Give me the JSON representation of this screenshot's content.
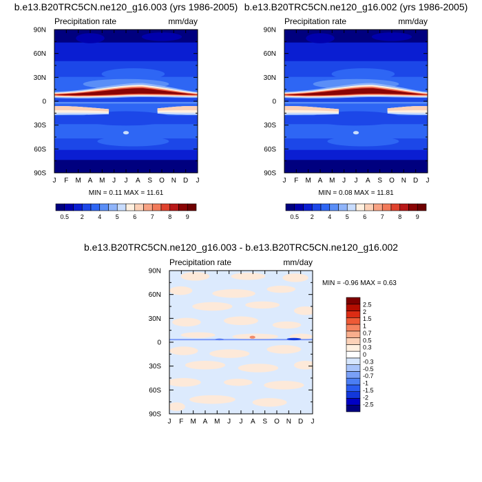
{
  "colors": {
    "abs_scale": [
      "#00007f",
      "#0000ad",
      "#0a1ed2",
      "#1c47e8",
      "#2e66f4",
      "#5a8ef7",
      "#8fb4fa",
      "#c8dcfd",
      "#fff0e0",
      "#fcd0b6",
      "#f8a283",
      "#f27a5a",
      "#e0422d",
      "#b81818",
      "#8a0404",
      "#6e0000"
    ],
    "diff_scale": [
      "#00007f",
      "#0000c4",
      "#1238dc",
      "#2a5cf0",
      "#4b7ef4",
      "#7aa0f7",
      "#a9c4fa",
      "#d6e6fd",
      "#ffffff",
      "#fff0e0",
      "#fcd2b8",
      "#f9ae8d",
      "#f5835f",
      "#ee5a36",
      "#dc2c14",
      "#b30d00",
      "#7e0000"
    ],
    "diff_bg": "#dceafd",
    "diff_warm": "#fde9d9",
    "diff_blue": "#5b7ff5",
    "diff_red": "#f08a6a"
  },
  "panel_left": {
    "title": "b.e13.B20TRC5CN.ne120_g16.003 (yrs 1986-2005)",
    "left_label": "Precipitation rate",
    "right_label": "mm/day",
    "minmax": "MIN =   0.11 MAX =  11.61"
  },
  "panel_right": {
    "title": "b.e13.B20TRC5CN.ne120_g16.002 (yrs 1986-2005)",
    "left_label": "Precipitation rate",
    "right_label": "mm/day",
    "minmax": "MIN =   0.08 MAX =  11.81"
  },
  "panel_diff": {
    "title": "b.e13.B20TRC5CN.ne120_g16.003 - b.e13.B20TRC5CN.ne120_g16.002",
    "left_label": "Precipitation rate",
    "right_label": "mm/day",
    "minmax": "MIN =  -0.96 MAX =   0.63"
  },
  "chart_data": [
    {
      "type": "heatmap",
      "title": "b.e13.B20TRC5CN.ne120_g16.003 (yrs 1986-2005)",
      "variable": "Precipitation rate",
      "units": "mm/day",
      "x_ticks": [
        "J",
        "F",
        "M",
        "A",
        "M",
        "J",
        "J",
        "A",
        "S",
        "O",
        "N",
        "D",
        "J"
      ],
      "y_ticks": [
        "90N",
        "60N",
        "30N",
        "0",
        "30S",
        "60S",
        "90S"
      ],
      "y_values": [
        90,
        60,
        30,
        0,
        -30,
        -60,
        -90
      ],
      "min": 0.11,
      "max": 11.61,
      "colorbar_labels": [
        "0.5",
        "2",
        "4",
        "5",
        "6",
        "7",
        "8",
        "9"
      ]
    },
    {
      "type": "heatmap",
      "title": "b.e13.B20TRC5CN.ne120_g16.002 (yrs 1986-2005)",
      "variable": "Precipitation rate",
      "units": "mm/day",
      "x_ticks": [
        "J",
        "F",
        "M",
        "A",
        "M",
        "J",
        "J",
        "A",
        "S",
        "O",
        "N",
        "D",
        "J"
      ],
      "y_ticks": [
        "90N",
        "60N",
        "30N",
        "0",
        "30S",
        "60S",
        "90S"
      ],
      "y_values": [
        90,
        60,
        30,
        0,
        -30,
        -60,
        -90
      ],
      "min": 0.08,
      "max": 11.81,
      "colorbar_labels": [
        "0.5",
        "2",
        "4",
        "5",
        "6",
        "7",
        "8",
        "9"
      ]
    },
    {
      "type": "heatmap",
      "title": "b.e13.B20TRC5CN.ne120_g16.003 - b.e13.B20TRC5CN.ne120_g16.002",
      "variable": "Precipitation rate",
      "units": "mm/day",
      "x_ticks": [
        "J",
        "F",
        "M",
        "A",
        "M",
        "J",
        "J",
        "A",
        "S",
        "O",
        "N",
        "D",
        "J"
      ],
      "y_ticks": [
        "90N",
        "60N",
        "30N",
        "0",
        "30S",
        "60S",
        "90S"
      ],
      "y_values": [
        90,
        60,
        30,
        0,
        -30,
        -60,
        -90
      ],
      "min": -0.96,
      "max": 0.63,
      "colorbar_labels": [
        "2.5",
        "2",
        "1.5",
        "1",
        "0.7",
        "0.5",
        "0.3",
        "0",
        "-0.3",
        "-0.5",
        "-0.7",
        "-1",
        "-1.5",
        "-2",
        "-2.5"
      ]
    }
  ]
}
